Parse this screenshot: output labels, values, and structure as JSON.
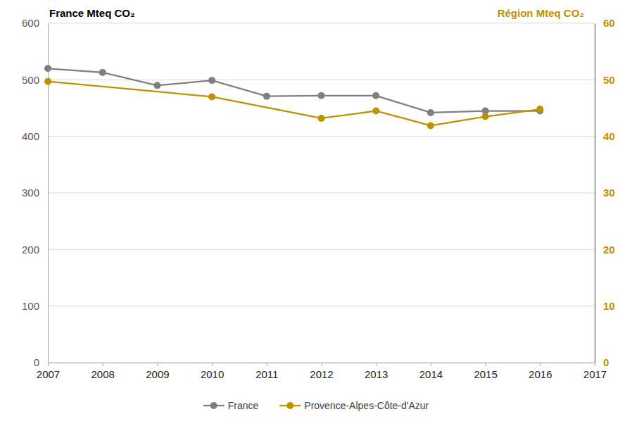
{
  "chart_data": {
    "type": "line",
    "y_label": "France Mteq CO₂",
    "y2_label": "Région Mteq CO₂",
    "xlim": [
      2007,
      2017
    ],
    "xticks": [
      2007,
      2008,
      2009,
      2010,
      2011,
      2012,
      2013,
      2014,
      2015,
      2016,
      2017
    ],
    "ylim": [
      0,
      600
    ],
    "yticks": [
      0,
      100,
      200,
      300,
      400,
      500,
      600
    ],
    "y2lim": [
      0,
      60
    ],
    "y2ticks": [
      0,
      10,
      20,
      30,
      40,
      50,
      60
    ],
    "grid": true,
    "legend": "bottom",
    "series": [
      {
        "name": "France",
        "color": "#7f7f7f",
        "marker": "circle",
        "x": [
          2007,
          2008,
          2009,
          2010,
          2011,
          2012,
          2013,
          2014,
          2015,
          2016
        ],
        "values": [
          520,
          513,
          490,
          499,
          471,
          472,
          472,
          442,
          445,
          445
        ]
      },
      {
        "name": "Provence-Alpes-Côte-d'Azur",
        "color": "#bf9000",
        "marker": "circle",
        "axis": "y2",
        "x": [
          2007,
          2010,
          2012,
          2013,
          2014,
          2015,
          2016
        ],
        "values": [
          49.7,
          47.0,
          43.2,
          44.5,
          41.9,
          43.5,
          44.8
        ]
      }
    ]
  }
}
